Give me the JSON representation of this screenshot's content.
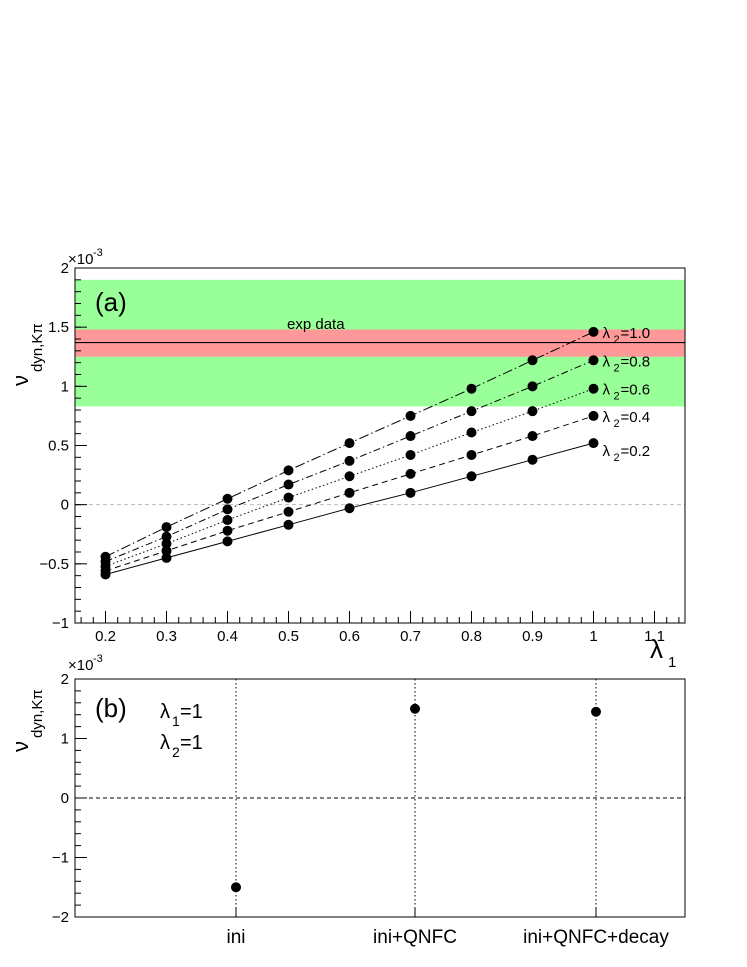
{
  "chart_data": [
    {
      "panel": "(a)",
      "type": "line",
      "y_exponent_label": "×10",
      "y_exponent_power": "-3",
      "ylabel_symbol": "ν",
      "ylabel_subscript": "dyn,Kπ",
      "xlabel_symbol": "λ",
      "xlabel_subscript": "1",
      "xlim": [
        0.15,
        1.15
      ],
      "ylim": [
        -1.0,
        2.0
      ],
      "x_ticks": [
        0.2,
        0.3,
        0.4,
        0.5,
        0.6,
        0.7,
        0.8,
        0.9,
        1.0,
        1.1
      ],
      "x_tick_labels": [
        "0.2",
        "0.3",
        "0.4",
        "0.5",
        "0.6",
        "0.7",
        "0.8",
        "0.9",
        "1",
        "1.1"
      ],
      "y_ticks": [
        -1.0,
        -0.5,
        0.0,
        0.5,
        1.0,
        1.5,
        2.0
      ],
      "y_tick_labels": [
        "−1",
        "−0.5",
        "0",
        "0.5",
        "1",
        "1.5",
        "2"
      ],
      "zero_line": "dashed grey",
      "exp_data": {
        "label": "exp data",
        "central": 1.37,
        "stat_band": [
          1.25,
          1.48
        ],
        "sys_band": [
          0.83,
          1.9
        ],
        "stat_color": "#ff9999",
        "sys_color": "#99ff99"
      },
      "x": [
        0.2,
        0.3,
        0.4,
        0.5,
        0.6,
        0.7,
        0.8,
        0.9,
        1.0
      ],
      "series": [
        {
          "lambda_symbol": "λ",
          "lambda_sub": "2",
          "value_text": " =0.2",
          "style": "solid",
          "values": [
            -0.59,
            -0.45,
            -0.31,
            -0.17,
            -0.03,
            0.1,
            0.24,
            0.38,
            0.52
          ]
        },
        {
          "lambda_symbol": "λ",
          "lambda_sub": "2",
          "value_text": " =0.4",
          "style": "dashed",
          "values": [
            -0.56,
            -0.39,
            -0.22,
            -0.06,
            0.1,
            0.26,
            0.42,
            0.58,
            0.75
          ]
        },
        {
          "lambda_symbol": "λ",
          "lambda_sub": "2",
          "value_text": " =0.6",
          "style": "dotted",
          "values": [
            -0.52,
            -0.33,
            -0.13,
            0.06,
            0.24,
            0.42,
            0.61,
            0.79,
            0.98
          ]
        },
        {
          "lambda_symbol": "λ",
          "lambda_sub": "2",
          "value_text": " =0.8",
          "style": "dashdot",
          "values": [
            -0.48,
            -0.27,
            -0.04,
            0.17,
            0.37,
            0.58,
            0.79,
            1.0,
            1.22
          ]
        },
        {
          "lambda_symbol": "λ",
          "lambda_sub": "2",
          "value_text": " =1.0",
          "style": "dashdotlong",
          "values": [
            -0.44,
            -0.19,
            0.05,
            0.29,
            0.52,
            0.75,
            0.98,
            1.22,
            1.46
          ]
        }
      ]
    },
    {
      "panel": "(b)",
      "type": "scatter",
      "y_exponent_label": "×10",
      "y_exponent_power": "-3",
      "ylabel_symbol": "ν",
      "ylabel_subscript": "dyn,Kπ",
      "ylim": [
        -2.0,
        2.0
      ],
      "y_ticks": [
        -2,
        -1,
        0,
        1,
        2
      ],
      "y_tick_labels": [
        "−2",
        "−1",
        "0",
        "1",
        "2"
      ],
      "categories": [
        "ini",
        "ini+QNFC",
        "ini+QNFC+decay"
      ],
      "values": [
        -1.5,
        1.5,
        1.45
      ],
      "lambda_notes": [
        {
          "symbol": "λ",
          "sub": "1",
          "text": "=1"
        },
        {
          "symbol": "λ",
          "sub": "2",
          "text": "=1"
        }
      ]
    }
  ]
}
